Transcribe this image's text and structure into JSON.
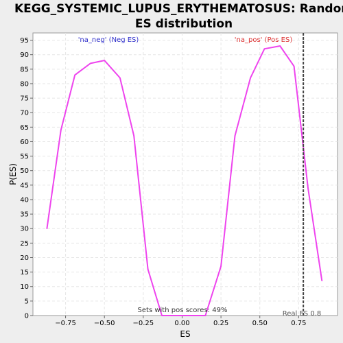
{
  "chart_data": {
    "type": "line",
    "title_line1": "KEGG_SYSTEMIC_LUPUS_ERYTHEMATOSUS: Random",
    "title_line2": "ES distribution",
    "xlabel": "ES",
    "ylabel": "P(ES)",
    "xlim": [
      -0.96,
      1.0
    ],
    "ylim": [
      0,
      97.5
    ],
    "x_ticks": [
      -0.75,
      -0.5,
      -0.25,
      0.0,
      0.25,
      0.5,
      0.75
    ],
    "x_tick_labels": [
      "−0.75",
      "−0.50",
      "−0.25",
      "0.00",
      "0.25",
      "0.50",
      "0.75"
    ],
    "y_ticks": [
      0,
      5,
      10,
      15,
      20,
      25,
      30,
      35,
      40,
      45,
      50,
      55,
      60,
      65,
      70,
      75,
      80,
      85,
      90,
      95
    ],
    "grid": true,
    "series": [
      {
        "color": "#ee44ee",
        "x": [
          -0.87,
          -0.78,
          -0.69,
          -0.59,
          -0.5,
          -0.4,
          -0.31,
          -0.22,
          -0.13,
          -0.03,
          0.06,
          0.15,
          0.25,
          0.34,
          0.44,
          0.53,
          0.63,
          0.72,
          0.81,
          0.9
        ],
        "y": [
          30,
          64,
          83,
          87,
          88,
          82,
          62,
          16,
          0,
          0,
          0,
          0,
          17,
          62,
          82,
          92,
          93,
          86,
          44,
          12
        ]
      }
    ],
    "real_es": 0.78,
    "annotations": {
      "neg_label": "'na_neg' (Neg ES)",
      "pos_label": "'na_pos' (Pos ES)",
      "pos_scores": "Sets with pos scores: 49%",
      "real_es_label": "Real ES 0.8"
    },
    "colors": {
      "line": "#ee44ee",
      "neg_label": "#3333cc",
      "pos_label": "#dd3333",
      "real_es_line": "#444444",
      "grid": "#e6e6e6"
    }
  }
}
